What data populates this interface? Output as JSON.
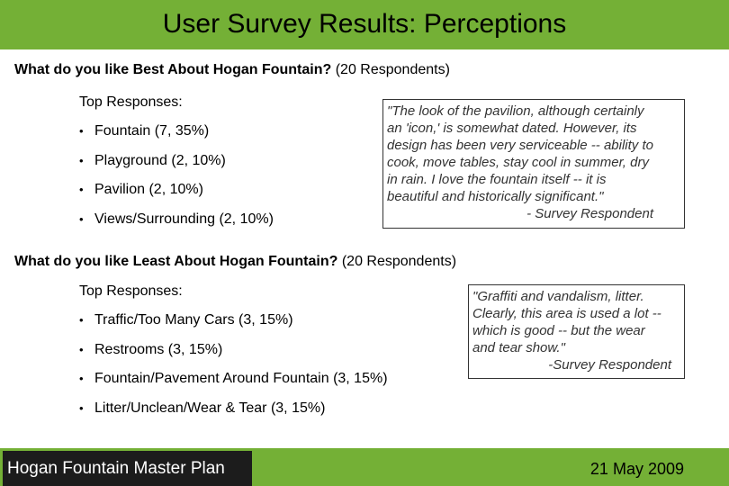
{
  "title": "User Survey Results: Perceptions",
  "section_best": {
    "question_bold": "What do you like Best About Hogan Fountain?",
    "question_suffix": " (20 Respondents)",
    "top_responses_label": "Top Responses:",
    "items": [
      "Fountain (7, 35%)",
      "Playground (2, 10%)",
      "Pavilion (2, 10%)",
      "Views/Surrounding (2, 10%)"
    ],
    "quote_lines": [
      "\"The look of the pavilion, although certainly",
      "an 'icon,' is somewhat dated. However, its",
      "design has been very serviceable -- ability to",
      "cook, move tables, stay cool in summer, dry",
      "in rain. I love the fountain itself -- it is",
      "beautiful and historically significant.\""
    ],
    "quote_attribution": "- Survey Respondent"
  },
  "section_least": {
    "question_bold": "What do you like Least About Hogan Fountain?",
    "question_suffix": " (20 Respondents)",
    "top_responses_label": "Top Responses:",
    "items": [
      "Traffic/Too Many Cars (3, 15%)",
      "Restrooms (3, 15%)",
      "Fountain/Pavement Around Fountain (3, 15%)",
      "Litter/Unclean/Wear & Tear (3, 15%)"
    ],
    "quote_lines": [
      "\"Graffiti and vandalism, litter.",
      "Clearly, this area is used a lot --",
      "which is good -- but the wear",
      "and tear show.\""
    ],
    "quote_attribution": "-Survey Respondent"
  },
  "footer": {
    "project": "Hogan Fountain Master Plan",
    "date": "21 May 2009"
  },
  "bullet_char": "•"
}
